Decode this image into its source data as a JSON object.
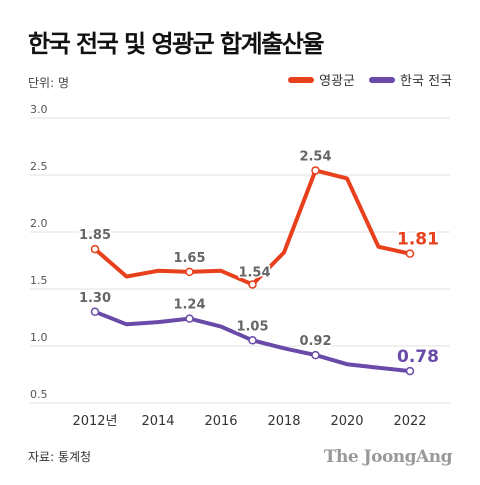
{
  "title": "한국 전국 및 영광군 합계출산율",
  "unit_label": "단위: 명",
  "source": "자료: 통계청",
  "logo_text": "The JoongAng",
  "colors": {
    "yeonggwang": "#e8401c",
    "korea": "#6a4aa8",
    "grid": "#e2e2e2",
    "label": "#666666"
  },
  "chart_data": {
    "type": "line",
    "title": "한국 전국 및 영광군 합계출산율",
    "xlabel": "",
    "ylabel": "",
    "x": [
      2012,
      2013,
      2014,
      2015,
      2016,
      2017,
      2018,
      2019,
      2020,
      2021,
      2022
    ],
    "x_tick_values": [
      2012,
      2014,
      2016,
      2018,
      2020,
      2022
    ],
    "x_tick_labels": [
      "2012년",
      "2014",
      "2016",
      "2018",
      "2020",
      "2022"
    ],
    "y_ticks": [
      "0.5",
      "1.0",
      "1.5",
      "2.0",
      "2.5",
      "3.0"
    ],
    "ylim": [
      0.5,
      3.0
    ],
    "grid": true,
    "legend_position": "top-right",
    "series": [
      {
        "name": "영광군",
        "color": "#e8401c",
        "values": [
          1.85,
          1.61,
          1.66,
          1.65,
          1.66,
          1.54,
          1.82,
          2.54,
          2.47,
          1.87,
          1.81
        ],
        "marked_indices": [
          0,
          3,
          5,
          7,
          10
        ],
        "labels": [
          {
            "index": 0,
            "text": "1.85"
          },
          {
            "index": 3,
            "text": "1.65"
          },
          {
            "index": 5,
            "text": "1.54"
          },
          {
            "index": 7,
            "text": "2.54"
          },
          {
            "index": 10,
            "text": "1.81"
          }
        ]
      },
      {
        "name": "한국 전국",
        "color": "#6a4aa8",
        "values": [
          1.3,
          1.19,
          1.21,
          1.24,
          1.17,
          1.05,
          0.98,
          0.92,
          0.84,
          0.81,
          0.78
        ],
        "marked_indices": [
          0,
          3,
          5,
          7,
          10
        ],
        "labels": [
          {
            "index": 0,
            "text": "1.30"
          },
          {
            "index": 3,
            "text": "1.24"
          },
          {
            "index": 5,
            "text": "1.05"
          },
          {
            "index": 7,
            "text": "0.92"
          },
          {
            "index": 10,
            "text": "0.78"
          }
        ]
      }
    ]
  }
}
